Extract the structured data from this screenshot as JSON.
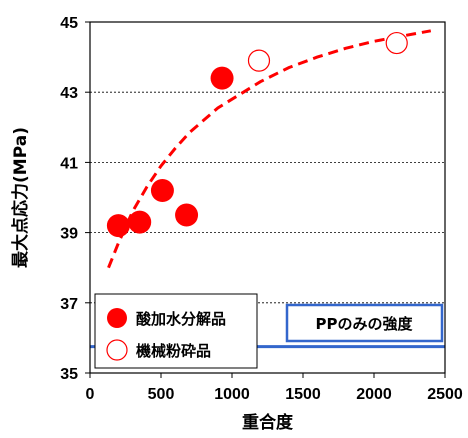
{
  "chart_data": {
    "type": "scatter",
    "xlabel": "重合度",
    "ylabel": "最大点応力(MPa)",
    "xlim": [
      0,
      2500
    ],
    "ylim": [
      35,
      45
    ],
    "xticks": [
      0,
      500,
      1000,
      1500,
      2000,
      2500
    ],
    "yticks": [
      35,
      37,
      39,
      41,
      43,
      45
    ],
    "grid": "horizontal dashed at 39, 41, 43",
    "legend_position": "bottom-left",
    "series": [
      {
        "name": "酸加水分解品",
        "marker": "filled-circle",
        "color": "#ff0000",
        "points": [
          {
            "x": 200,
            "y": 39.2
          },
          {
            "x": 350,
            "y": 39.3
          },
          {
            "x": 510,
            "y": 40.2
          },
          {
            "x": 680,
            "y": 39.5
          },
          {
            "x": 930,
            "y": 43.4
          }
        ]
      },
      {
        "name": "機械粉砕品",
        "marker": "open-circle",
        "color": "#ff0000",
        "points": [
          {
            "x": 1190,
            "y": 43.9
          },
          {
            "x": 2160,
            "y": 44.4
          }
        ]
      }
    ],
    "trend": {
      "style": "dashed",
      "color": "#ff0000",
      "x": [
        130,
        200,
        300,
        400,
        500,
        600,
        700,
        800,
        900,
        1000,
        1200,
        1400,
        1600,
        1800,
        2000,
        2200,
        2400
      ],
      "y": [
        38.0,
        38.7,
        39.6,
        40.3,
        40.9,
        41.4,
        41.85,
        42.2,
        42.55,
        42.8,
        43.3,
        43.7,
        44.0,
        44.25,
        44.45,
        44.6,
        44.75
      ]
    },
    "reference": {
      "label": "PPのみの強度",
      "y": 35.75,
      "color": "#3366cc"
    }
  }
}
